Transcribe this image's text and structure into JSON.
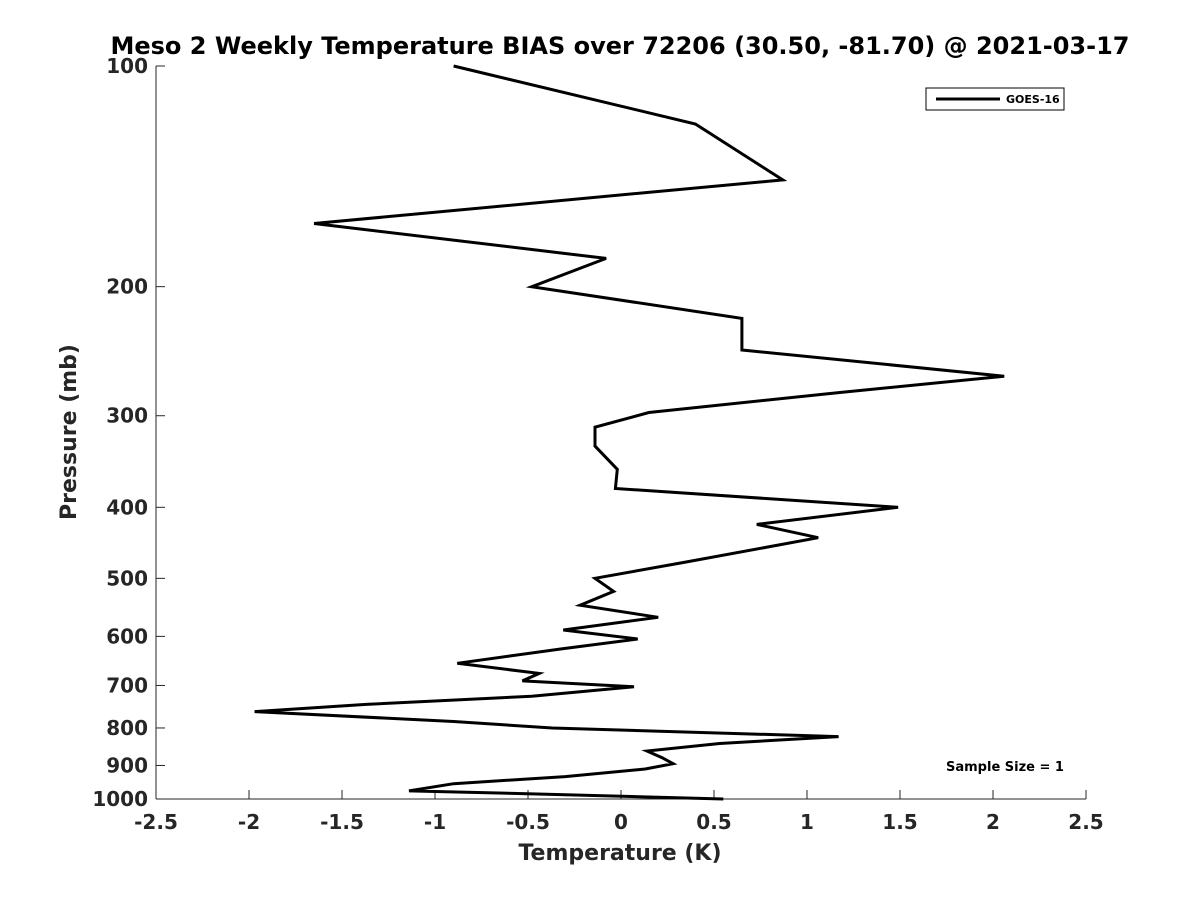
{
  "chart_data": {
    "type": "line",
    "title": "Meso 2 Weekly Temperature BIAS over 72206 (30.50, -81.70) @ 2021-03-17",
    "xlabel": "Temperature (K)",
    "ylabel": "Pressure (mb)",
    "xlim": [
      -2.5,
      2.5
    ],
    "ylim": [
      100,
      1000
    ],
    "yscale": "log",
    "y_direction": "reversed",
    "x_ticks": [
      -2.5,
      -2,
      -1.5,
      -1,
      -0.5,
      0,
      0.5,
      1,
      1.5,
      2,
      2.5
    ],
    "x_tick_labels": [
      "-2.5",
      "-2",
      "-1.5",
      "-1",
      "-0.5",
      "0",
      "0.5",
      "1",
      "1.5",
      "2",
      "2.5"
    ],
    "y_ticks": [
      100,
      200,
      300,
      400,
      500,
      600,
      700,
      800,
      900,
      1000
    ],
    "y_tick_labels": [
      "100",
      "200",
      "300",
      "400",
      "500",
      "600",
      "700",
      "800",
      "900",
      "1000"
    ],
    "grid": false,
    "legend": {
      "position": "top-right",
      "entries": [
        "GOES-16"
      ]
    },
    "annotation": "Sample Size = 1",
    "series": [
      {
        "name": "GOES-16",
        "color": "#000000",
        "points": [
          [
            -0.9,
            100
          ],
          [
            0.4,
            120
          ],
          [
            0.87,
            143
          ],
          [
            -1.65,
            164
          ],
          [
            -0.08,
            183
          ],
          [
            -0.48,
            200
          ],
          [
            0.65,
            221
          ],
          [
            0.65,
            244
          ],
          [
            2.06,
            265
          ],
          [
            1.17,
            279
          ],
          [
            0.15,
            297
          ],
          [
            -0.14,
            311
          ],
          [
            -0.14,
            330
          ],
          [
            -0.02,
            355
          ],
          [
            -0.03,
            377
          ],
          [
            1.49,
            400
          ],
          [
            0.73,
            422
          ],
          [
            1.06,
            440
          ],
          [
            0.35,
            475
          ],
          [
            -0.14,
            500
          ],
          [
            -0.04,
            521
          ],
          [
            -0.22,
            544
          ],
          [
            0.2,
            565
          ],
          [
            -0.31,
            588
          ],
          [
            0.09,
            605
          ],
          [
            -0.32,
            624
          ],
          [
            -0.88,
            653
          ],
          [
            -0.44,
            674
          ],
          [
            -0.53,
            690
          ],
          [
            0.07,
            703
          ],
          [
            -0.48,
            724
          ],
          [
            -1.37,
            743
          ],
          [
            -1.97,
            760
          ],
          [
            -0.9,
            784
          ],
          [
            -0.37,
            800
          ],
          [
            1.17,
            822
          ],
          [
            0.53,
            840
          ],
          [
            0.14,
            860
          ],
          [
            0.22,
            878
          ],
          [
            0.28,
            895
          ],
          [
            0.13,
            910
          ],
          [
            -0.3,
            932
          ],
          [
            -0.9,
            953
          ],
          [
            -1.14,
            975
          ],
          [
            -0.4,
            985
          ],
          [
            0.55,
            1000
          ]
        ]
      }
    ]
  }
}
